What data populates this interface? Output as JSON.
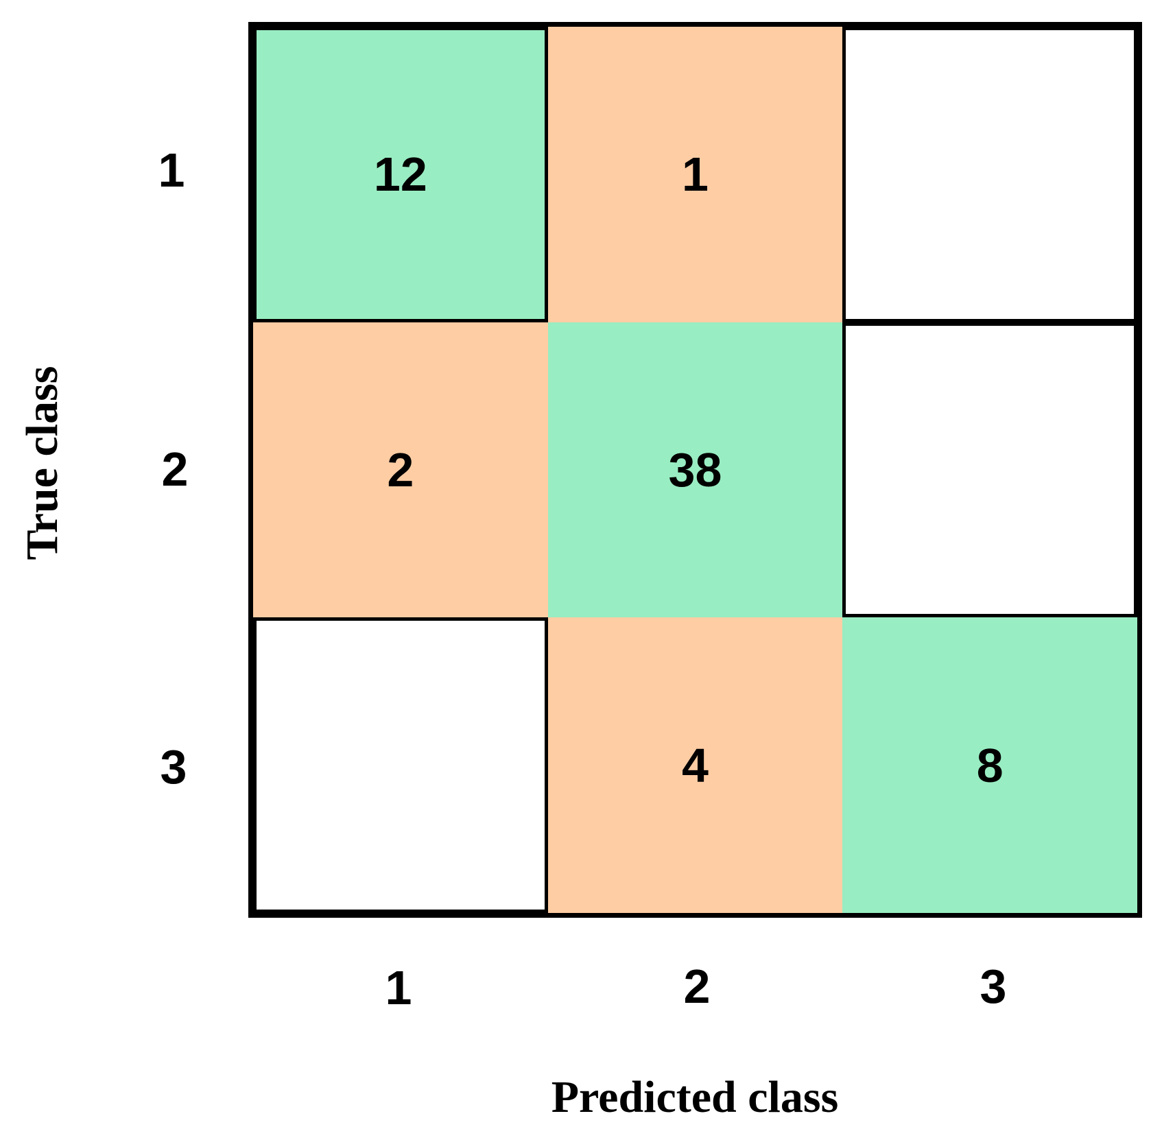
{
  "chart_data": {
    "type": "heatmap",
    "subtype": "confusion_matrix",
    "title": "",
    "xlabel": "Predicted class",
    "ylabel": "True class",
    "x_tick_labels": [
      "1",
      "2",
      "3"
    ],
    "y_tick_labels": [
      "1",
      "2",
      "3"
    ],
    "rows": [
      {
        "true_class": "1",
        "values": [
          12,
          1,
          null
        ]
      },
      {
        "true_class": "2",
        "values": [
          2,
          38,
          null
        ]
      },
      {
        "true_class": "3",
        "values": [
          null,
          4,
          8
        ]
      }
    ],
    "cell_labels": {
      "r1c1": "12",
      "r1c2": "1",
      "r1c3": "",
      "r2c1": "2",
      "r2c2": "38",
      "r2c3": "",
      "r3c1": "",
      "r3c2": "4",
      "r3c3": "8"
    },
    "colors": {
      "correct_cell": "#99EDC2",
      "error_cell": "#FECDA4",
      "empty_cell": "#FFFFFF",
      "border": "#000000",
      "text": "#000000"
    },
    "legend": "none",
    "grid": "off"
  }
}
